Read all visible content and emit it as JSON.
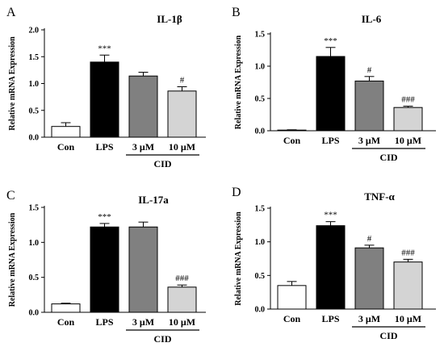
{
  "chart_data": [
    {
      "type": "bar",
      "panel": "A",
      "title": "IL-1β",
      "ylabel": "Relative mRNA Expression",
      "ylim": [
        0,
        2.0
      ],
      "yticks": [
        "0.0",
        "0.5",
        "1.0",
        "1.5",
        "2.0"
      ],
      "categories": [
        "Con",
        "LPS",
        "3 μM",
        "10 μM"
      ],
      "group_label": "CID",
      "group_members": [
        2,
        3
      ],
      "values": [
        0.2,
        1.4,
        1.14,
        0.86
      ],
      "errors": [
        0.07,
        0.13,
        0.07,
        0.08
      ],
      "annotations": [
        "",
        "***",
        "",
        "#"
      ],
      "colors": [
        "#ffffff",
        "#000000",
        "#808080",
        "#d4d4d4"
      ]
    },
    {
      "type": "bar",
      "panel": "B",
      "title": "IL-6",
      "ylabel": "Relative mRNA Expression",
      "ylim": [
        0,
        1.5
      ],
      "yticks": [
        "0.0",
        "0.5",
        "1.0",
        "1.5"
      ],
      "categories": [
        "Con",
        "LPS",
        "3 μM",
        "10 μM"
      ],
      "group_label": "CID",
      "group_members": [
        2,
        3
      ],
      "values": [
        0.01,
        1.15,
        0.77,
        0.36
      ],
      "errors": [
        0.005,
        0.14,
        0.07,
        0.02
      ],
      "annotations": [
        "",
        "***",
        "#",
        "###"
      ],
      "colors": [
        "#ffffff",
        "#000000",
        "#808080",
        "#d4d4d4"
      ]
    },
    {
      "type": "bar",
      "panel": "C",
      "title": "IL-17a",
      "ylabel": "Relative mRNA Expression",
      "ylim": [
        0,
        1.5
      ],
      "yticks": [
        "0.0",
        "0.5",
        "1.0",
        "1.5"
      ],
      "categories": [
        "Con",
        "LPS",
        "3 μM",
        "10 μM"
      ],
      "group_label": "CID",
      "group_members": [
        2,
        3
      ],
      "values": [
        0.12,
        1.22,
        1.22,
        0.36
      ],
      "errors": [
        0.01,
        0.05,
        0.07,
        0.03
      ],
      "annotations": [
        "",
        "***",
        "",
        "###"
      ],
      "colors": [
        "#ffffff",
        "#000000",
        "#808080",
        "#d4d4d4"
      ]
    },
    {
      "type": "bar",
      "panel": "D",
      "title": "TNF-α",
      "ylabel": "Relative mRNA Expression",
      "ylim": [
        0,
        1.5
      ],
      "yticks": [
        "0.0",
        "0.5",
        "1.0",
        "1.5"
      ],
      "categories": [
        "Con",
        "LPS",
        "3 μM",
        "10 μM"
      ],
      "group_label": "CID",
      "group_members": [
        2,
        3
      ],
      "values": [
        0.35,
        1.24,
        0.91,
        0.7
      ],
      "errors": [
        0.06,
        0.06,
        0.04,
        0.04
      ],
      "annotations": [
        "",
        "***",
        "#",
        "###"
      ],
      "colors": [
        "#ffffff",
        "#000000",
        "#808080",
        "#d4d4d4"
      ]
    }
  ]
}
